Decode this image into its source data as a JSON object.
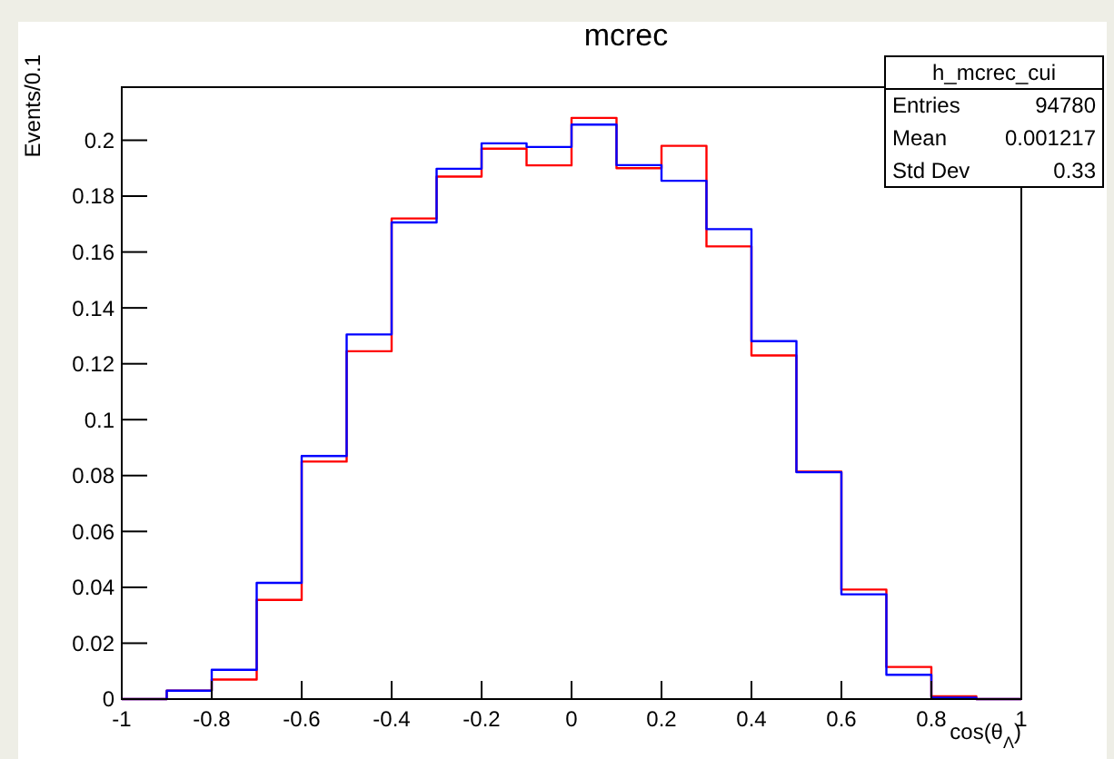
{
  "chart_data": {
    "type": "histogram",
    "title": "mcrec",
    "xlabel": "cos(θ$_{Λ}$)",
    "ylabel": "Events/0.1",
    "bins": [
      -1,
      -0.9,
      -0.8,
      -0.7,
      -0.6,
      -0.5,
      -0.4,
      -0.3,
      -0.2,
      -0.1,
      0,
      0.1,
      0.2,
      0.3,
      0.4,
      0.5,
      0.6,
      0.7,
      0.8,
      0.9,
      1
    ],
    "series": [
      {
        "color": "#ff0000",
        "values": [
          0,
          0.003,
          0.007,
          0.0355,
          0.085,
          0.1245,
          0.172,
          0.187,
          0.197,
          0.191,
          0.208,
          0.19,
          0.198,
          0.162,
          0.123,
          0.0814,
          0.0392,
          0.0115,
          0.001,
          0
        ]
      },
      {
        "color": "#0000ff",
        "values": [
          0,
          0.003,
          0.0105,
          0.0416,
          0.087,
          0.1305,
          0.1706,
          0.1898,
          0.1989,
          0.1976,
          0.2056,
          0.1911,
          0.1855,
          0.1682,
          0.1281,
          0.0812,
          0.0375,
          0.0087,
          0.0005,
          0
        ]
      }
    ],
    "xlim": [
      -1,
      1
    ],
    "ylim": [
      0,
      0.219
    ],
    "xticks": [
      -1,
      -0.8,
      -0.6,
      -0.4,
      -0.2,
      0,
      0.2,
      0.4,
      0.6,
      0.8,
      1
    ],
    "yticks": [
      0,
      0.02,
      0.04,
      0.06,
      0.08,
      0.1,
      0.12,
      0.14,
      0.16,
      0.18,
      0.2
    ],
    "grid": false,
    "annotations": [
      "h_mcrec_cui",
      "Entries",
      "94780",
      "Mean",
      "0.001217",
      "Std Dev",
      "0.33"
    ]
  }
}
